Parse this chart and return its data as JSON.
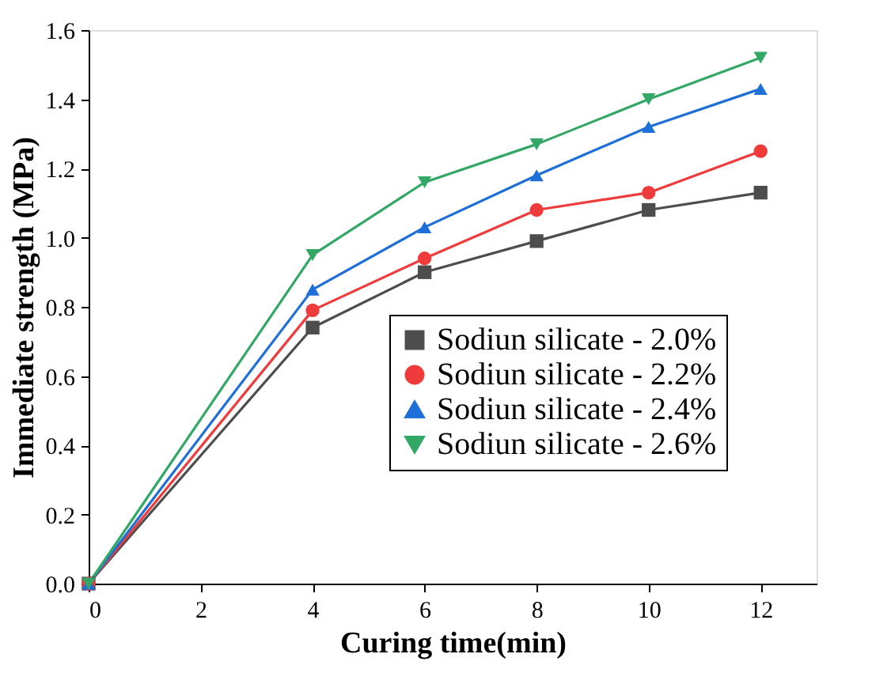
{
  "chart_data": {
    "type": "line",
    "xlabel": "Curing time(min)",
    "ylabel": "Immediate strength (MPa)",
    "x": [
      0,
      4,
      6,
      8,
      10,
      12
    ],
    "series": [
      {
        "name": "Sodiun silicate - 2.0%",
        "color": "#4d4d4d",
        "marker": "square",
        "values": [
          0,
          0.74,
          0.9,
          0.99,
          1.08,
          1.13
        ]
      },
      {
        "name": "Sodiun silicate - 2.2%",
        "color": "#ef3b3b",
        "marker": "circle",
        "values": [
          0,
          0.79,
          0.94,
          1.08,
          1.13,
          1.25
        ]
      },
      {
        "name": "Sodiun silicate - 2.4%",
        "color": "#1f6fd8",
        "marker": "triangle",
        "values": [
          0,
          0.85,
          1.03,
          1.18,
          1.32,
          1.43
        ]
      },
      {
        "name": "Sodiun silicate - 2.6%",
        "color": "#33a866",
        "marker": "triangle-down",
        "values": [
          0,
          0.95,
          1.16,
          1.27,
          1.4,
          1.52
        ]
      }
    ],
    "xlim": [
      0,
      13
    ],
    "xticks": [
      0,
      2,
      4,
      6,
      8,
      10,
      12
    ],
    "ylim": [
      0,
      1.6
    ],
    "yticks": [
      {
        "value": 0,
        "label": "0.0"
      },
      0.2,
      0.4,
      0.6,
      0.8,
      {
        "value": 1,
        "label": "1.0"
      },
      1.2,
      1.4,
      1.6
    ],
    "grid": false,
    "legend": "right",
    "line_style": "solid"
  }
}
